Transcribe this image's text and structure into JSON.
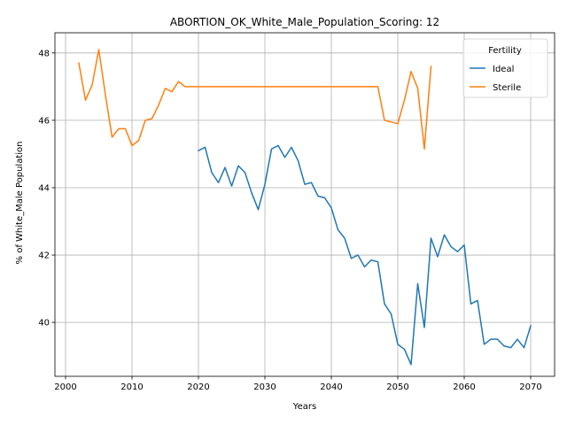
{
  "chart_data": {
    "type": "line",
    "title": "ABORTION_OK_White_Male_Population_Scoring: 12",
    "xlabel": "Years",
    "ylabel": "% of White_Male Population",
    "xlim": [
      1998.4,
      2073.6
    ],
    "ylim": [
      38.4,
      48.6
    ],
    "xticks": [
      2000,
      2010,
      2020,
      2030,
      2040,
      2050,
      2060,
      2070
    ],
    "yticks": [
      40,
      42,
      44,
      46,
      48
    ],
    "grid": true,
    "legend": {
      "title": "Fertility",
      "position": "top-right"
    },
    "series": [
      {
        "name": "Ideal",
        "color": "#1f77b4",
        "x": [
          2020,
          2021,
          2022,
          2023,
          2024,
          2025,
          2026,
          2027,
          2028,
          2029,
          2030,
          2031,
          2032,
          2033,
          2034,
          2035,
          2036,
          2037,
          2038,
          2039,
          2040,
          2041,
          2042,
          2043,
          2044,
          2045,
          2046,
          2047,
          2048,
          2049,
          2050,
          2051,
          2052,
          2053,
          2054,
          2055,
          2056,
          2057,
          2058,
          2059,
          2060,
          2061,
          2062,
          2063,
          2064,
          2065,
          2066,
          2067,
          2068,
          2069,
          2070
        ],
        "values": [
          45.1,
          45.2,
          44.45,
          44.15,
          44.6,
          44.05,
          44.65,
          44.45,
          43.85,
          43.35,
          44.1,
          45.15,
          45.25,
          44.9,
          45.2,
          44.8,
          44.1,
          44.15,
          43.75,
          43.7,
          43.4,
          42.75,
          42.5,
          41.9,
          42.0,
          41.65,
          41.85,
          41.8,
          40.55,
          40.25,
          39.35,
          39.2,
          38.75,
          41.15,
          39.85,
          42.5,
          41.95,
          42.6,
          42.25,
          42.1,
          42.3,
          40.55,
          40.65,
          39.35,
          39.5,
          39.5,
          39.3,
          39.25,
          39.5,
          39.25,
          39.9
        ]
      },
      {
        "name": "Sterile",
        "color": "#ff7f0e",
        "x": [
          2002,
          2003,
          2004,
          2005,
          2006,
          2007,
          2008,
          2009,
          2010,
          2011,
          2012,
          2013,
          2014,
          2015,
          2016,
          2017,
          2018,
          2019,
          2020,
          2021,
          2022,
          2023,
          2024,
          2025,
          2026,
          2027,
          2028,
          2029,
          2030,
          2031,
          2032,
          2033,
          2034,
          2035,
          2036,
          2037,
          2038,
          2039,
          2040,
          2041,
          2042,
          2043,
          2044,
          2045,
          2046,
          2047,
          2048,
          2049,
          2050,
          2051,
          2052,
          2053,
          2054,
          2055
        ],
        "values": [
          47.7,
          46.6,
          47.05,
          48.1,
          46.75,
          45.5,
          45.75,
          45.75,
          45.25,
          45.4,
          46.0,
          46.05,
          46.45,
          46.95,
          46.85,
          47.15,
          47.0,
          47.0,
          47.0,
          47.0,
          47.0,
          47.0,
          47.0,
          47.0,
          47.0,
          47.0,
          47.0,
          47.0,
          47.0,
          47.0,
          47.0,
          47.0,
          47.0,
          47.0,
          47.0,
          47.0,
          47.0,
          47.0,
          47.0,
          47.0,
          47.0,
          47.0,
          47.0,
          47.0,
          47.0,
          47.0,
          46.0,
          45.95,
          45.9,
          46.6,
          47.45,
          46.95,
          45.15,
          47.6
        ]
      }
    ]
  }
}
